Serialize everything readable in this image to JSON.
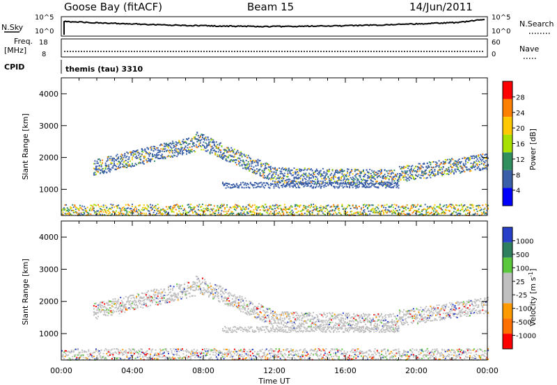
{
  "header": {
    "station": "Goose Bay (fitACF)",
    "beam": "Beam 15",
    "date": "14/Jun/2011"
  },
  "info_panels": {
    "nsky_label": "N.Sky",
    "nsky_ticks": [
      "10^5",
      "10^0"
    ],
    "nsearch_label": "N.Search",
    "nsearch_ticks": [
      "10^5",
      "10^0"
    ],
    "freq_label_1": "Freq.",
    "freq_label_2": "[MHz]",
    "freq_ticks": [
      "18",
      "8"
    ],
    "nave_label": "Nave",
    "nave_ticks": [
      "60",
      "0"
    ],
    "cpid_label": "CPID",
    "cpid_text": "themis (tau) 3310"
  },
  "chart_data": [
    {
      "type": "heatmap",
      "name": "power",
      "ylabel": "Slant Range [km]",
      "y_ticks": [
        "4000",
        "3000",
        "2000",
        "1000"
      ],
      "ylim": [
        180,
        4500
      ],
      "xlim": [
        0,
        24
      ],
      "colorbar_label": "Power [dB]",
      "colorbar_ticks": [
        "28",
        "24",
        "20",
        "16",
        "12",
        "8",
        "4"
      ],
      "colorbar_colors": [
        "#ff0000",
        "#ff8000",
        "#ffc800",
        "#a8e000",
        "#2f8f5f",
        "#3a5fa8",
        "#0000ff"
      ]
    },
    {
      "type": "heatmap",
      "name": "velocity",
      "ylabel": "Slant Range [km]",
      "y_ticks": [
        "4000",
        "3000",
        "2000",
        "1000"
      ],
      "ylim": [
        180,
        4500
      ],
      "xlim": [
        0,
        24
      ],
      "colorbar_label": "Velocity [m s",
      "colorbar_label_sup": "-1",
      "colorbar_label_end": "]",
      "colorbar_ticks": [
        "1000",
        "500",
        "100",
        "25",
        "-25",
        "-100",
        "-500",
        "-1000"
      ],
      "colorbar_colors": [
        "#2840c8",
        "#2f7f5f",
        "#5ac83c",
        "#c0c0c0",
        "#c0c0c0",
        "#ff9900",
        "#ff7000",
        "#ff0000"
      ]
    }
  ],
  "time_axis": {
    "label": "Time UT",
    "ticks": [
      "00:00",
      "04:00",
      "08:00",
      "12:00",
      "16:00",
      "20:00",
      "00:00"
    ]
  }
}
